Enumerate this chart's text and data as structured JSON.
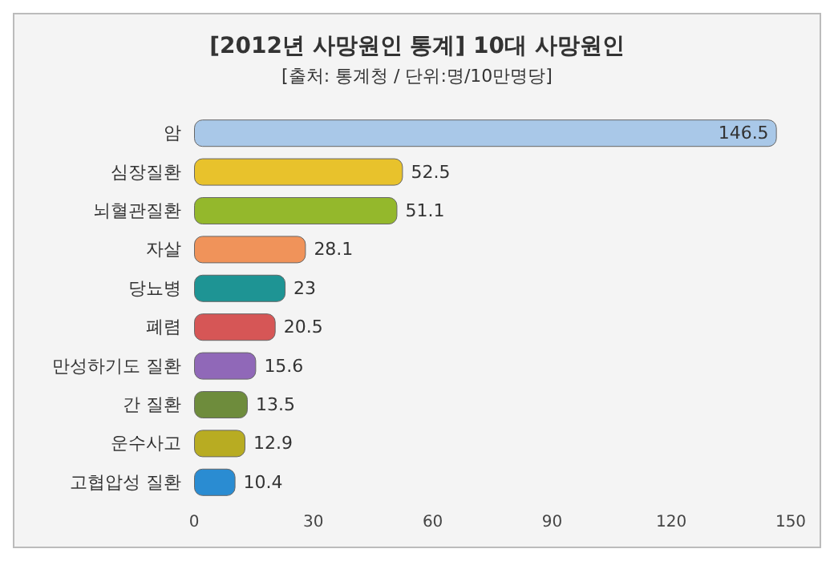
{
  "chart_data": {
    "type": "bar",
    "orientation": "horizontal",
    "title": "[2012년 사망원인 통계] 10대 사망원인",
    "subtitle": "[출처: 통계청 / 단위:명/10만명당]",
    "categories": [
      "암",
      "심장질환",
      "뇌혈관질환",
      "자살",
      "당뇨병",
      "폐렴",
      "만성하기도 질환",
      "간 질환",
      "운수사고",
      "고협압성 질환"
    ],
    "values": [
      146.5,
      52.5,
      51.1,
      28.1,
      23,
      20.5,
      15.6,
      13.5,
      12.9,
      10.4
    ],
    "colors": [
      "#a9c8e8",
      "#e8c22c",
      "#94b82c",
      "#f0935a",
      "#1e9494",
      "#d65656",
      "#9068b8",
      "#6e8c3c",
      "#b8ac22",
      "#2a8cd2"
    ],
    "xlim": [
      0,
      150
    ],
    "xticks": [
      0,
      30,
      60,
      90,
      120,
      150
    ],
    "grid": false,
    "data_labels": true
  }
}
